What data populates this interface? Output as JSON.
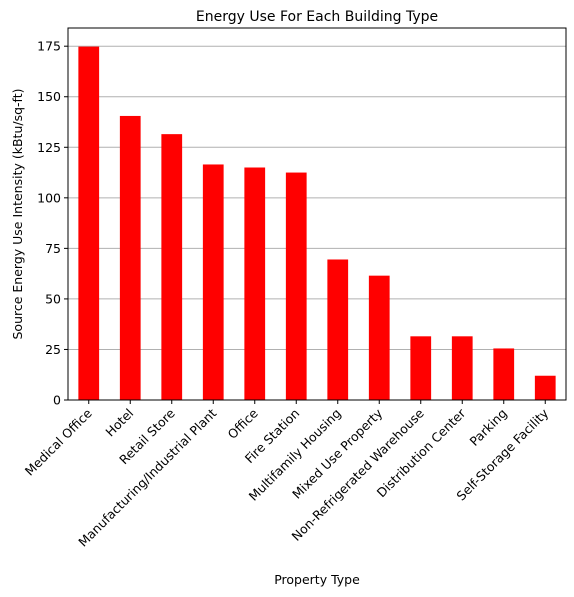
{
  "chart_data": {
    "type": "bar",
    "title": "Energy Use For Each Building Type",
    "xlabel": "Property Type",
    "ylabel": "Source Energy Use Intensity (kBtu/sq-ft)",
    "categories": [
      "Medical Office",
      "Hotel",
      "Retail Store",
      "Manufacturing/Industrial Plant",
      "Office",
      "Fire Station",
      "Multifamily Housing",
      "Mixed Use Property",
      "Non-Refrigerated Warehouse",
      "Distribution Center",
      "Parking",
      "Self-Storage Facility"
    ],
    "values": [
      174.8,
      140.5,
      131.5,
      116.5,
      115.0,
      112.5,
      69.5,
      61.5,
      31.5,
      31.5,
      25.5,
      12.0
    ],
    "ylim": [
      0,
      184
    ],
    "yticks": [
      0,
      25,
      50,
      75,
      100,
      125,
      150,
      175
    ],
    "grid": "y-axis horizontal lines",
    "legend": "none",
    "bar_color": "#ff0000",
    "grid_color": "#b0b0b0"
  }
}
